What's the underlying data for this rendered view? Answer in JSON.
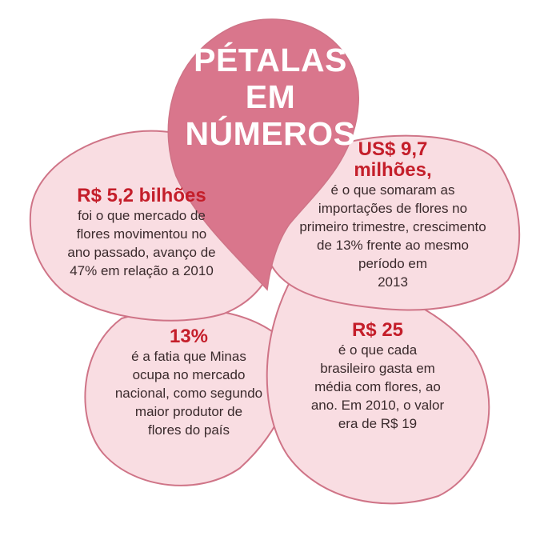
{
  "title": "PÉTALAS\nEM\nNÚMEROS",
  "colors": {
    "petal_fill": "#f9dde2",
    "petal_stroke": "#cf7487",
    "center_fill": "#d9768c",
    "headline": "#c41e2a",
    "title_text": "#ffffff",
    "body_text": "#3a2a2c"
  },
  "petals": [
    {
      "figure": "R$ 5,2 bilhões",
      "text": "foi o que mercado de\nflores movimentou no\nano passado, avanço de\n47% em relação a 2010"
    },
    {
      "figure": "US$ 9,7\nmilhões,",
      "text": "é o que somaram as\nimportações de flores no\nprimeiro trimestre, crescimento\nde 13% frente ao mesmo\nperíodo em\n2013"
    },
    {
      "figure": "13%",
      "text": "é a fatia que Minas\nocupa no mercado\nnacional, como segundo\nmaior produtor de\nflores do país"
    },
    {
      "figure": "R$ 25",
      "text": "é o que cada\nbrasileiro gasta em\nmédia com flores, ao\nano. Em 2010, o valor\nera de R$ 19"
    }
  ]
}
